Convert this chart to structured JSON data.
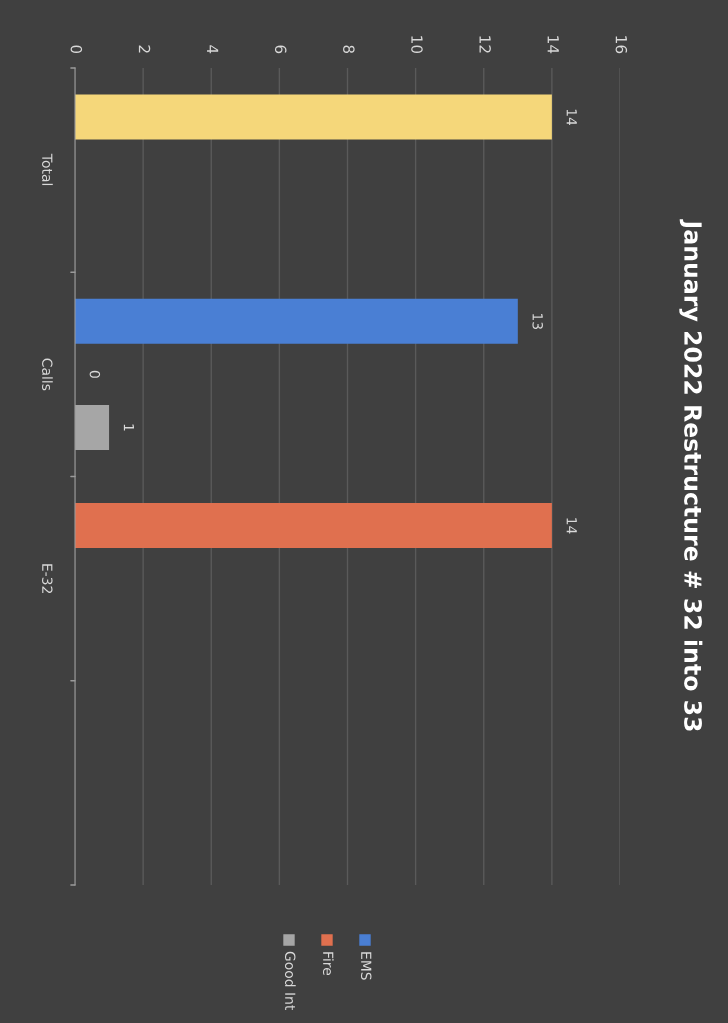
{
  "chart_data": {
    "type": "bar",
    "orientation": "horizontal",
    "title": "January 2022 Restructure # 32 into 33",
    "categories": [
      "Total",
      "Calls",
      "E-32",
      null
    ],
    "series": [
      {
        "color": "#f5d77a",
        "values": [
          14,
          null,
          null,
          null
        ]
      },
      {
        "name": "EMS",
        "color": "#4a7fd4",
        "values": [
          null,
          13,
          null,
          null
        ]
      },
      {
        "name": "Fire",
        "color": "#e0704f",
        "values": [
          null,
          0,
          14,
          null
        ]
      },
      {
        "name": "Good Int",
        "color": "#a6a6a6",
        "values": [
          null,
          1,
          null,
          null
        ]
      }
    ],
    "xlim": [
      0,
      16
    ],
    "xticks": [
      0,
      2,
      4,
      6,
      8,
      10,
      12,
      14,
      16
    ],
    "grid": "x",
    "legend": "bottom",
    "data_labels": true
  }
}
